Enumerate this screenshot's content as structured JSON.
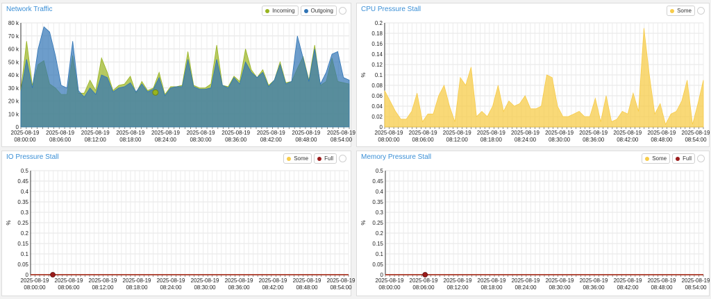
{
  "colors": {
    "incoming": "#98b41f",
    "outgoing": "#2f74b5",
    "some": "#f7cc4a",
    "full": "#9b1b1b",
    "title": "#3a8fd6"
  },
  "panels": {
    "network": {
      "title": "Network Traffic",
      "legend": [
        "Incoming",
        "Outgoing"
      ]
    },
    "cpu": {
      "title": "CPU Pressure Stall",
      "legend": [
        "Some"
      ],
      "ylabel": "%"
    },
    "io": {
      "title": "IO Pressure Stall",
      "legend": [
        "Some",
        "Full"
      ],
      "ylabel": "%"
    },
    "memory": {
      "title": "Memory Pressure Stall",
      "legend": [
        "Some",
        "Full"
      ],
      "ylabel": "%"
    }
  },
  "chart_data": [
    {
      "id": "network",
      "type": "area",
      "title": "Network Traffic",
      "ylim": [
        0,
        80000
      ],
      "yticks": [
        "0",
        "10 k",
        "20 k",
        "30 k",
        "40 k",
        "50 k",
        "60 k",
        "70 k",
        "80 k"
      ],
      "xticks": [
        [
          "2025-08-19",
          "08:00:00"
        ],
        [
          "2025-08-19",
          "08:06:00"
        ],
        [
          "2025-08-19",
          "08:12:00"
        ],
        [
          "2025-08-19",
          "08:18:00"
        ],
        [
          "2025-08-19",
          "08:24:00"
        ],
        [
          "2025-08-19",
          "08:30:00"
        ],
        [
          "2025-08-19",
          "08:36:00"
        ],
        [
          "2025-08-19",
          "08:42:00"
        ],
        [
          "2025-08-19",
          "08:48:00"
        ],
        [
          "2025-08-19",
          "08:54:00"
        ]
      ],
      "series": [
        {
          "name": "Incoming",
          "color": "#98b41f",
          "values": [
            28000,
            66000,
            32000,
            48000,
            51000,
            33000,
            30000,
            25000,
            25000,
            55000,
            26000,
            26000,
            36000,
            28000,
            53000,
            42000,
            28000,
            32000,
            33000,
            39000,
            26000,
            35000,
            28000,
            30000,
            42000,
            25000,
            31000,
            31000,
            32000,
            58000,
            32000,
            30000,
            30000,
            33000,
            63000,
            32000,
            31000,
            39000,
            35000,
            60000,
            44000,
            38000,
            44000,
            32000,
            36000,
            50000,
            34000,
            35000,
            45000,
            54000,
            36000,
            63000,
            32000,
            35000,
            53000,
            35000,
            34000,
            33000
          ]
        },
        {
          "name": "Outgoing",
          "color": "#2f74b5",
          "values": [
            27000,
            52000,
            30000,
            60000,
            77000,
            73000,
            55000,
            32000,
            30000,
            66000,
            28000,
            23000,
            30000,
            25000,
            40000,
            38000,
            27000,
            30000,
            31000,
            34000,
            27000,
            33000,
            27000,
            29000,
            38000,
            24000,
            30000,
            31000,
            31000,
            52000,
            31000,
            29000,
            29000,
            30000,
            52000,
            32000,
            30000,
            38000,
            33000,
            50000,
            42000,
            38000,
            42000,
            31000,
            36000,
            48000,
            33000,
            35000,
            70000,
            53000,
            35000,
            60000,
            33000,
            42000,
            56000,
            58000,
            38000,
            36000
          ]
        }
      ],
      "marker_value": 26500
    },
    {
      "id": "cpu",
      "type": "area",
      "title": "CPU Pressure Stall",
      "ylabel": "%",
      "ylim": [
        0,
        0.2
      ],
      "yticks": [
        "0",
        "0.02",
        "0.04",
        "0.06",
        "0.08",
        "0.1",
        "0.12",
        "0.14",
        "0.16",
        "0.18",
        "0.2"
      ],
      "xticks": [
        [
          "2025-08-19",
          "08:00:00"
        ],
        [
          "2025-08-19",
          "08:06:00"
        ],
        [
          "2025-08-19",
          "08:12:00"
        ],
        [
          "2025-08-19",
          "08:18:00"
        ],
        [
          "2025-08-19",
          "08:24:00"
        ],
        [
          "2025-08-19",
          "08:30:00"
        ],
        [
          "2025-08-19",
          "08:36:00"
        ],
        [
          "2025-08-19",
          "08:42:00"
        ],
        [
          "2025-08-19",
          "08:48:00"
        ],
        [
          "2025-08-19",
          "08:54:00"
        ]
      ],
      "series": [
        {
          "name": "Some",
          "color": "#f7cc4a",
          "values": [
            0.07,
            0.05,
            0.03,
            0.015,
            0.015,
            0.03,
            0.065,
            0.01,
            0.025,
            0.025,
            0.06,
            0.08,
            0.04,
            0.01,
            0.095,
            0.08,
            0.115,
            0.02,
            0.03,
            0.02,
            0.04,
            0.08,
            0.03,
            0.05,
            0.04,
            0.045,
            0.06,
            0.035,
            0.035,
            0.04,
            0.1,
            0.095,
            0.04,
            0.02,
            0.02,
            0.025,
            0.03,
            0.02,
            0.02,
            0.055,
            0.01,
            0.06,
            0.01,
            0.015,
            0.03,
            0.025,
            0.065,
            0.03,
            0.19,
            0.1,
            0.025,
            0.045,
            0.005,
            0.025,
            0.03,
            0.05,
            0.09,
            0.005,
            0.045,
            0.09
          ]
        }
      ]
    },
    {
      "id": "io",
      "type": "line",
      "title": "IO Pressure Stall",
      "ylabel": "%",
      "ylim": [
        0,
        0.5
      ],
      "yticks": [
        "0",
        "0.05",
        "0.1",
        "0.15",
        "0.2",
        "0.25",
        "0.3",
        "0.35",
        "0.4",
        "0.45",
        "0.5"
      ],
      "xticks": [
        [
          "2025-08-19",
          "08:00:00"
        ],
        [
          "2025-08-19",
          "08:06:00"
        ],
        [
          "2025-08-19",
          "08:12:00"
        ],
        [
          "2025-08-19",
          "08:18:00"
        ],
        [
          "2025-08-19",
          "08:24:00"
        ],
        [
          "2025-08-19",
          "08:30:00"
        ],
        [
          "2025-08-19",
          "08:36:00"
        ],
        [
          "2025-08-19",
          "08:42:00"
        ],
        [
          "2025-08-19",
          "08:48:00"
        ],
        [
          "2025-08-19",
          "08:54:00"
        ]
      ],
      "series": [
        {
          "name": "Some",
          "color": "#f7cc4a",
          "values": [
            0,
            0,
            0,
            0,
            0,
            0,
            0,
            0,
            0,
            0,
            0
          ]
        },
        {
          "name": "Full",
          "color": "#9b1b1b",
          "values": [
            0,
            0,
            0,
            0,
            0,
            0,
            0,
            0,
            0,
            0,
            0
          ]
        }
      ]
    },
    {
      "id": "memory",
      "type": "line",
      "title": "Memory Pressure Stall",
      "ylabel": "%",
      "ylim": [
        0,
        0.5
      ],
      "yticks": [
        "0",
        "0.05",
        "0.1",
        "0.15",
        "0.2",
        "0.25",
        "0.3",
        "0.35",
        "0.4",
        "0.45",
        "0.5"
      ],
      "xticks": [
        [
          "2025-08-19",
          "08:00:00"
        ],
        [
          "2025-08-19",
          "08:06:00"
        ],
        [
          "2025-08-19",
          "08:12:00"
        ],
        [
          "2025-08-19",
          "08:18:00"
        ],
        [
          "2025-08-19",
          "08:24:00"
        ],
        [
          "2025-08-19",
          "08:30:00"
        ],
        [
          "2025-08-19",
          "08:36:00"
        ],
        [
          "2025-08-19",
          "08:42:00"
        ],
        [
          "2025-08-19",
          "08:48:00"
        ],
        [
          "2025-08-19",
          "08:54:00"
        ]
      ],
      "series": [
        {
          "name": "Some",
          "color": "#f7cc4a",
          "values": [
            0,
            0,
            0,
            0,
            0,
            0,
            0,
            0,
            0,
            0,
            0
          ]
        },
        {
          "name": "Full",
          "color": "#9b1b1b",
          "values": [
            0,
            0,
            0,
            0,
            0,
            0,
            0,
            0,
            0,
            0,
            0
          ]
        }
      ]
    }
  ]
}
